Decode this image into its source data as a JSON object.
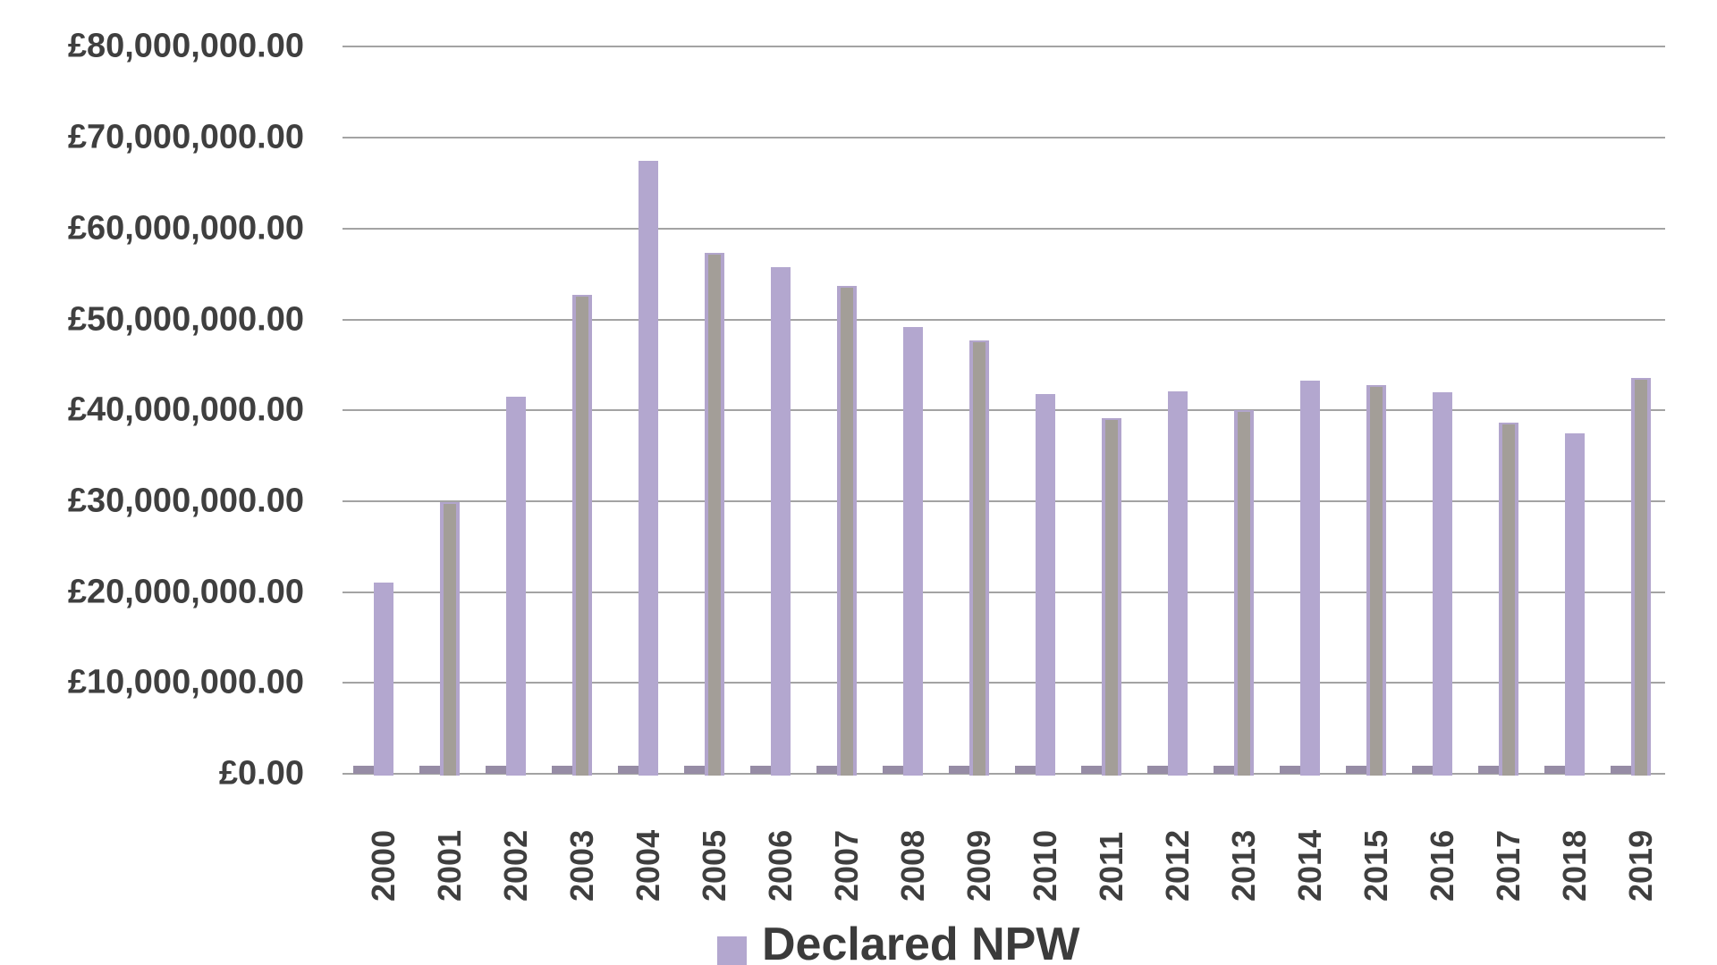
{
  "chart_data": {
    "type": "bar",
    "title": "",
    "xlabel": "",
    "ylabel": "",
    "categories": [
      "2000",
      "2001",
      "2002",
      "2003",
      "2004",
      "2005",
      "2006",
      "2007",
      "2008",
      "2009",
      "2010",
      "2011",
      "2012",
      "2013",
      "2014",
      "2015",
      "2016",
      "2017",
      "2018",
      "2019"
    ],
    "series": [
      {
        "name": "Declared NPW",
        "color_hex": "#b3a7cf",
        "values_gbp": [
          21000000,
          29900000,
          41500000,
          52700000,
          67500000,
          57300000,
          55800000,
          53700000,
          49200000,
          47700000,
          41800000,
          39100000,
          42100000,
          40000000,
          43300000,
          42800000,
          42000000,
          38600000,
          37500000,
          43600000
        ],
        "bar_appearance": [
          "purple",
          "gray",
          "purple",
          "gray",
          "purple",
          "gray",
          "purple",
          "gray",
          "purple",
          "gray",
          "purple",
          "gray",
          "purple",
          "gray",
          "purple",
          "gray",
          "purple",
          "gray",
          "purple",
          "gray"
        ]
      }
    ],
    "secondary_mini_bars": {
      "visible": true,
      "approx_value_gbp": 800000,
      "color_hex": "#968ca5",
      "position": "left of each main column at baseline"
    },
    "y_axis": {
      "min": 0,
      "max": 80000000,
      "step": 10000000,
      "tick_labels": [
        "£80,000,000.00",
        "£70,000,000.00",
        "£60,000,000.00",
        "£50,000,000.00",
        "£40,000,000.00",
        "£30,000,000.00",
        "£20,000,000.00",
        "£10,000,000.00",
        "£0.00"
      ]
    },
    "x_tick_rotation_deg": -90,
    "grid": true,
    "legend": {
      "position": "bottom-center",
      "clipped_at_bottom": true,
      "entries": [
        {
          "label": "Declared NPW",
          "swatch_color_hex": "#b3a7cf"
        }
      ]
    }
  },
  "colors": {
    "background": "#ffffff",
    "gridline": "#a3a3a3",
    "axis_text": "#3f3f3f",
    "bar_purple": "#b3a7cf",
    "bar_gray": "#a39e98",
    "bar_gray_edge": "#b2a5cc",
    "mini_bar": "#968ca5"
  }
}
